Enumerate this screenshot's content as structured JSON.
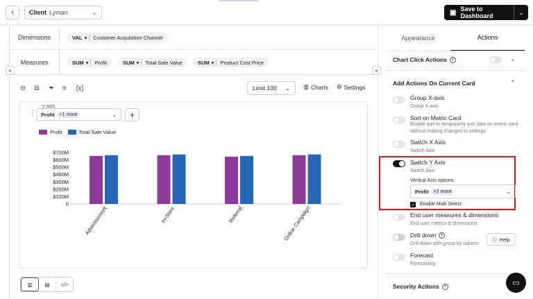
{
  "header": {
    "back_icon": "chevron-left-icon",
    "client_label": "Client",
    "client_value": "Lyman",
    "save_label": "Save to Dashboard"
  },
  "dimensions": {
    "label": "Dimensions",
    "items": [
      {
        "agg": "VAL",
        "field": "Customer Acquisition Channel"
      }
    ]
  },
  "measures": {
    "label": "Measures",
    "items": [
      {
        "agg": "SUM",
        "field": "Profit"
      },
      {
        "agg": "SUM",
        "field": "Total Sale Value"
      },
      {
        "agg": "SUM",
        "field": "Product Cost Price"
      }
    ]
  },
  "toolbar": {
    "formula_label": "[x]",
    "limit_label": "Limit 100",
    "charts_label": "Charts",
    "settings_label": "Settings"
  },
  "yaxis": {
    "label": "y-axis",
    "selected": "Profit",
    "more": "+1 more"
  },
  "chart_data": {
    "type": "bar",
    "categories": [
      "Advertisement",
      "In-Store",
      "Referral",
      "Online Campaign"
    ],
    "series": [
      {
        "name": "Profit",
        "color": "#8e3a9a",
        "values": [
          655,
          665,
          645,
          665
        ]
      },
      {
        "name": "Total Sale Value",
        "color": "#2567b4",
        "values": [
          665,
          675,
          655,
          675
        ]
      }
    ],
    "yticks": [
      "0",
      "$100M",
      "$200M",
      "$300M",
      "$400M",
      "$500M",
      "$600M",
      "$700M"
    ],
    "ylim": [
      0,
      700
    ]
  },
  "right_panel": {
    "tabs": [
      {
        "label": "Appearance"
      },
      {
        "label": "Actions"
      }
    ],
    "chart_click": {
      "title": "Chart Click Actions"
    },
    "current_card": {
      "title": "Add Actions On Current Card",
      "options": [
        {
          "title": "Group X-axis",
          "desc": "Group X-axis"
        },
        {
          "title": "Sort on Metric Card",
          "desc": "Enable sort to temporarily sort data on metric card without making changes to settings"
        },
        {
          "title": "Switch X Axis",
          "desc": "Switch Axis"
        },
        {
          "title": "Switch Y Axis",
          "desc": "Switch Axis"
        },
        {
          "title": "End user measures & dimensions",
          "desc": "End user metrics & dimensions"
        },
        {
          "title": "Drill down",
          "desc": "Drill down with group by column"
        },
        {
          "title": "Forecast",
          "desc": "Forecasting"
        }
      ]
    },
    "vertical_axis": {
      "label": "Vertical Axis options",
      "selected": "Profit",
      "more": "+2 more",
      "multi_select_label": "Enable Multi Select"
    },
    "help_label": "Help",
    "security": {
      "title": "Security Actions"
    }
  }
}
